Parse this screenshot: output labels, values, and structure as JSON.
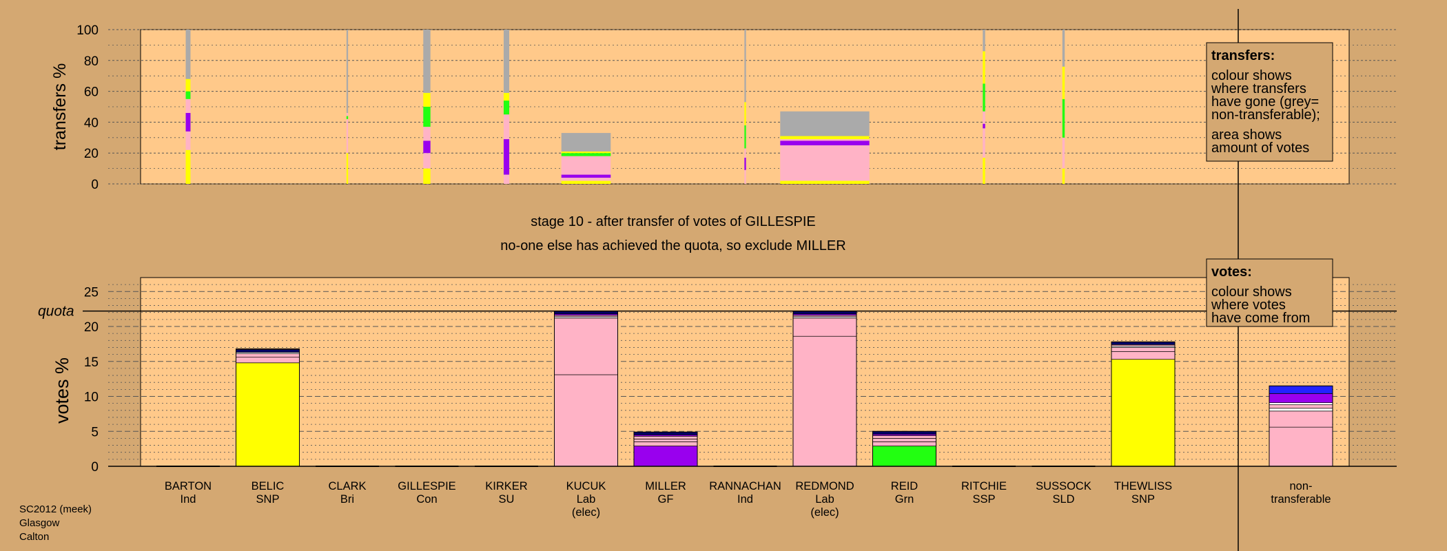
{
  "colors": {
    "background": "#d4a872",
    "plot_area": "#ffc98a",
    "grey": "#aaaaaa",
    "yellow": "#ffff00",
    "green": "#22ff11",
    "purple": "#9900ee",
    "pink": "#ffb3c6",
    "navy": "#000066",
    "blue": "#2222ff",
    "white": "#ffffff",
    "light_green": "#99ff66"
  },
  "footer": [
    "SC2012 (meek)",
    "Glasgow",
    "Calton"
  ],
  "stage_title": "stage 10 - after transfer of votes of GILLESPIE",
  "stage_subtitle": "no-one else has achieved the quota, so exclude MILLER",
  "transfers_legend": {
    "title": "transfers:",
    "lines": [
      "colour shows",
      "where transfers",
      "have gone (grey=",
      "non-transferable);"
    ],
    "lines2": [
      "area shows",
      "amount of votes"
    ]
  },
  "votes_legend": {
    "title": "votes:",
    "lines": [
      "colour shows",
      "where votes",
      "have come from"
    ]
  },
  "chart_data": [
    {
      "type": "bar",
      "name": "transfers",
      "ylabel": "transfers %",
      "ylim": [
        0,
        100
      ],
      "yticks": [
        0,
        20,
        40,
        60,
        80,
        100
      ],
      "categories": [
        "BARTON",
        "BELIC",
        "CLARK",
        "GILLESPIE",
        "KIRKER",
        "KUCUK",
        "MILLER",
        "RANNACHAN",
        "REDMOND",
        "REID",
        "RITCHIE",
        "SUSSOCK",
        "THEWLISS"
      ],
      "columns": [
        {
          "category": "BARTON",
          "width": 0.06,
          "segments": [
            [
              "yellow",
              22
            ],
            [
              "pink",
              12
            ],
            [
              "purple",
              12
            ],
            [
              "pink",
              9
            ],
            [
              "green",
              5
            ],
            [
              "yellow",
              8
            ],
            [
              "grey",
              32
            ]
          ]
        },
        {
          "category": "CLARK",
          "width": 0.02,
          "segments": [
            [
              "yellow",
              20
            ],
            [
              "pink",
              22
            ],
            [
              "green",
              2
            ],
            [
              "pink",
              2
            ],
            [
              "grey",
              54
            ]
          ]
        },
        {
          "category": "GILLESPIE",
          "width": 0.09,
          "segments": [
            [
              "yellow",
              10
            ],
            [
              "pink",
              10
            ],
            [
              "purple",
              8
            ],
            [
              "pink",
              9
            ],
            [
              "green",
              13
            ],
            [
              "yellow",
              9
            ],
            [
              "grey",
              41
            ]
          ]
        },
        {
          "category": "KIRKER",
          "width": 0.07,
          "segments": [
            [
              "pink",
              6
            ],
            [
              "purple",
              23
            ],
            [
              "pink",
              16
            ],
            [
              "green",
              9
            ],
            [
              "yellow",
              5
            ],
            [
              "grey",
              41
            ]
          ]
        },
        {
          "category": "KUCUK",
          "width": 0.62,
          "segments": [
            [
              "yellow",
              2
            ],
            [
              "pink",
              2
            ],
            [
              "purple",
              2
            ],
            [
              "pink",
              12
            ],
            [
              "green",
              2
            ],
            [
              "yellow",
              1
            ],
            [
              "grey",
              12
            ]
          ]
        },
        {
          "category": "RANNACHAN",
          "width": 0.02,
          "segments": [
            [
              "pink",
              9
            ],
            [
              "purple",
              8
            ],
            [
              "pink",
              6
            ],
            [
              "green",
              15
            ],
            [
              "yellow",
              15
            ],
            [
              "grey",
              47
            ]
          ]
        },
        {
          "category": "REDMOND",
          "width": 1.12,
          "segments": [
            [
              "yellow",
              2
            ],
            [
              "pink",
              23
            ],
            [
              "purple",
              3
            ],
            [
              "pink",
              1
            ],
            [
              "yellow",
              2
            ],
            [
              "grey",
              16
            ]
          ]
        },
        {
          "category": "RITCHIE",
          "width": 0.03,
          "segments": [
            [
              "yellow",
              17
            ],
            [
              "pink",
              19
            ],
            [
              "purple",
              3
            ],
            [
              "pink",
              8
            ],
            [
              "green",
              18
            ],
            [
              "yellow",
              21
            ],
            [
              "grey",
              14
            ]
          ]
        },
        {
          "category": "SUSSOCK",
          "width": 0.03,
          "segments": [
            [
              "yellow",
              10
            ],
            [
              "pink",
              20
            ],
            [
              "green",
              25
            ],
            [
              "yellow",
              21
            ],
            [
              "grey",
              24
            ]
          ]
        }
      ]
    },
    {
      "type": "bar",
      "name": "votes",
      "ylabel": "votes %",
      "ylim": [
        0,
        27
      ],
      "yticks": [
        0,
        5,
        10,
        15,
        20,
        25
      ],
      "quota": 22.2,
      "quota_label": "quota",
      "categories": [
        "BARTON",
        "BELIC",
        "CLARK",
        "GILLESPIE",
        "KIRKER",
        "KUCUK",
        "MILLER",
        "RANNACHAN",
        "REDMOND",
        "REID",
        "RITCHIE",
        "SUSSOCK",
        "THEWLISS",
        "non-transferable"
      ],
      "labels": [
        [
          "BARTON",
          "Ind"
        ],
        [
          "BELIC",
          "SNP"
        ],
        [
          "CLARK",
          "Bri"
        ],
        [
          "GILLESPIE",
          "Con"
        ],
        [
          "KIRKER",
          "SU"
        ],
        [
          "KUCUK",
          "Lab",
          "(elec)"
        ],
        [
          "MILLER",
          "GF"
        ],
        [
          "RANNACHAN",
          "Ind"
        ],
        [
          "REDMOND",
          "Lab",
          "(elec)"
        ],
        [
          "REID",
          "Grn"
        ],
        [
          "RITCHIE",
          "SSP"
        ],
        [
          "SUSSOCK",
          "SLD"
        ],
        [
          "THEWLISS",
          "SNP"
        ],
        [
          "non-",
          "transferable"
        ]
      ],
      "bars": [
        {
          "category": "BARTON",
          "segments": []
        },
        {
          "category": "BELIC",
          "segments": [
            [
              "yellow",
              14.8
            ],
            [
              "pink",
              0.8
            ],
            [
              "pink",
              0.5
            ],
            [
              "white",
              0.2
            ],
            [
              "navy",
              0.4
            ],
            [
              "pink",
              0.1
            ]
          ]
        },
        {
          "category": "CLARK",
          "segments": []
        },
        {
          "category": "GILLESPIE",
          "segments": []
        },
        {
          "category": "KIRKER",
          "segments": []
        },
        {
          "category": "KUCUK",
          "segments": [
            [
              "pink",
              13.1
            ],
            [
              "pink",
              8.1
            ],
            [
              "white",
              0.2
            ],
            [
              "pink",
              0.2
            ],
            [
              "purple",
              0.2
            ],
            [
              "navy",
              0.4
            ]
          ]
        },
        {
          "category": "MILLER",
          "segments": [
            [
              "purple",
              2.9
            ],
            [
              "pink",
              0.6
            ],
            [
              "pink",
              0.4
            ],
            [
              "pink",
              0.4
            ],
            [
              "purple",
              0.2
            ],
            [
              "navy",
              0.4
            ]
          ]
        },
        {
          "category": "RANNACHAN",
          "segments": []
        },
        {
          "category": "REDMOND",
          "segments": [
            [
              "pink",
              18.6
            ],
            [
              "pink",
              2.6
            ],
            [
              "white",
              0.2
            ],
            [
              "pink",
              0.2
            ],
            [
              "purple",
              0.2
            ],
            [
              "navy",
              0.4
            ]
          ]
        },
        {
          "category": "REID",
          "segments": [
            [
              "green",
              2.9
            ],
            [
              "pink",
              0.6
            ],
            [
              "pink",
              0.5
            ],
            [
              "pink",
              0.4
            ],
            [
              "purple",
              0.2
            ],
            [
              "navy",
              0.4
            ]
          ]
        },
        {
          "category": "RITCHIE",
          "segments": []
        },
        {
          "category": "SUSSOCK",
          "segments": []
        },
        {
          "category": "THEWLISS",
          "segments": [
            [
              "yellow",
              15.3
            ],
            [
              "pink",
              1.1
            ],
            [
              "pink",
              0.6
            ],
            [
              "white",
              0.2
            ],
            [
              "pink",
              0.2
            ],
            [
              "navy",
              0.4
            ]
          ]
        },
        {
          "category": "non-transferable",
          "segments": [
            [
              "pink",
              5.6
            ],
            [
              "pink",
              2.3
            ],
            [
              "white",
              0.4
            ],
            [
              "pink",
              0.5
            ],
            [
              "white",
              0.3
            ],
            [
              "purple",
              1.3
            ],
            [
              "blue",
              1.1
            ]
          ]
        }
      ]
    }
  ]
}
